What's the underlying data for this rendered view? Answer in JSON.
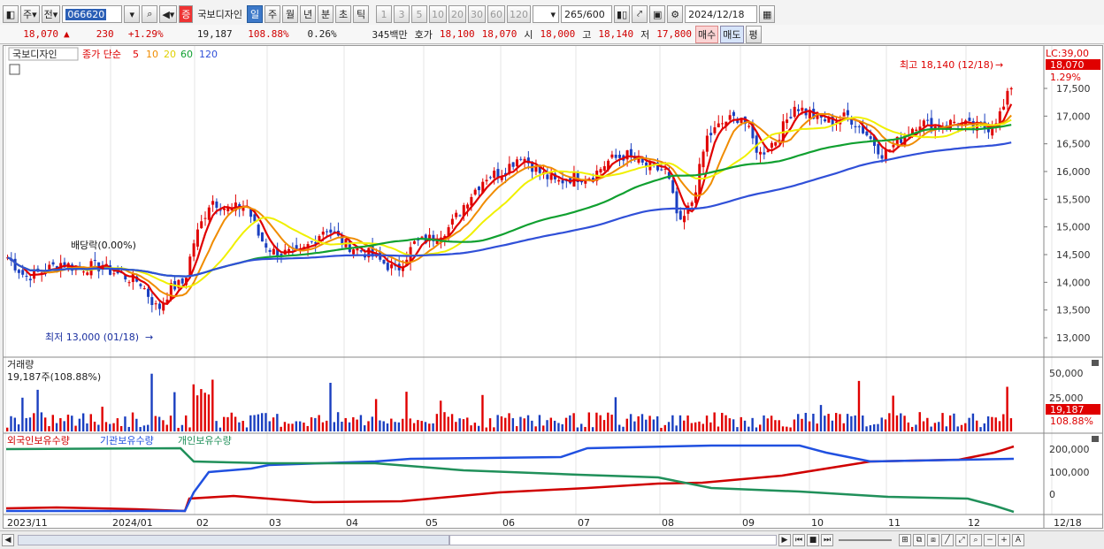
{
  "toolbar": {
    "market": "주",
    "prev": "전",
    "code": "066620",
    "name": "국보디자인",
    "periods": [
      "일",
      "주",
      "월",
      "년",
      "분",
      "초",
      "틱"
    ],
    "minutes": [
      "1",
      "3",
      "5",
      "10",
      "20",
      "30",
      "60",
      "120"
    ],
    "count": "265",
    "total": "/600",
    "date": "2024/12/18"
  },
  "quote": {
    "price": "18,070",
    "arrow": "▲",
    "change": "230",
    "rate": "+1.29%",
    "volume": "19,187",
    "vol_ratio": "108.88%",
    "turnover": "0.26%",
    "amount": "345백만",
    "ask_label": "호가",
    "ask": "18,100",
    "bid": "18,070",
    "open_label": "시",
    "open": "18,000",
    "high_label": "고",
    "high": "18,140",
    "low_label": "저",
    "low": "17,800",
    "buy_label": "매수",
    "sell_label": "매도",
    "avg_label": "평"
  },
  "price_panel": {
    "name": "국보디자인",
    "ma_label": "종가 단순",
    "ma_periods": [
      "5",
      "10",
      "20",
      "60",
      "120"
    ],
    "lc_label": "LC:39,00",
    "price_tag": "18,070",
    "pct_tag": "1.29%",
    "high_annot": "최고 18,140 (12/18)",
    "low_annot": "최저 13,000 (01/18)",
    "div_annot": "배당락(0.00%)",
    "y_ticks": [
      "17,500",
      "17,000",
      "16,500",
      "16,000",
      "15,500",
      "15,000",
      "14,500",
      "14,000",
      "13,500",
      "13,000"
    ]
  },
  "volume_panel": {
    "title": "거래량",
    "value": "19,187주(108.88%)",
    "y_ticks": [
      "50,000",
      "25,000"
    ],
    "tag": "19,187",
    "tag2": "108.88%"
  },
  "holding_panel": {
    "legends": [
      "외국인보유수량",
      "기관보유수량",
      "개인보유수량"
    ],
    "y_ticks": [
      "200,000",
      "100,000",
      "0"
    ]
  },
  "x_axis": {
    "labels": [
      "2023/11",
      "2024/01",
      "02",
      "03",
      "04",
      "05",
      "06",
      "07",
      "08",
      "09",
      "10",
      "11",
      "12",
      "12/18"
    ]
  },
  "colors": {
    "ma5": "#e00000",
    "ma10": "#f08c00",
    "ma20": "#f0f000",
    "ma60": "#10a030",
    "ma120": "#3050d8",
    "up": "#e00000",
    "down": "#1a3fc0",
    "foreign": "#d00000",
    "inst": "#2050e0",
    "indiv": "#20905a"
  }
}
